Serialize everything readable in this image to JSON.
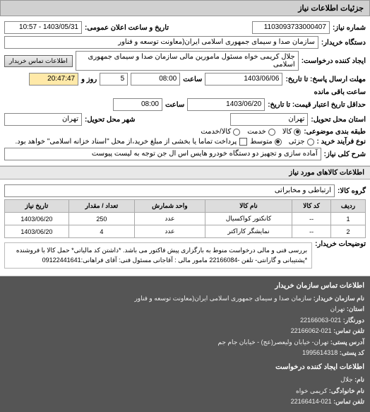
{
  "header": {
    "title": "جزئیات اطلاعات نیاز"
  },
  "top": {
    "need_no_label": "شماره نیاز:",
    "need_no": "1103093733000407",
    "announce_label": "تاریخ و ساعت اعلان عمومی:",
    "announce_value": "1403/05/31 - 10:57",
    "buyer_label": "دستگاه خریدار:",
    "buyer_value": "سازمان صدا و سیمای جمهوری اسلامی ایران(معاونت توسعه و فناور",
    "requester_label": "ایجاد کننده درخواست:",
    "requester_value": "جلال کریمی خواه مسئول مامورین مالی  سازمان صدا و سیمای جمهوری اسلامی",
    "contact_btn": "اطلاعات تماس خریدار",
    "reply_deadline_label": "مهلت ارسال پاسخ: تا تاریخ:",
    "reply_date": "1403/06/06",
    "reply_time_label": "ساعت",
    "reply_time": "08:00",
    "days_count": "5",
    "days_label": "روز و",
    "countdown": "20:47:47",
    "remaining_label": "ساعت باقی مانده",
    "validity_label": "حداقل تاریخ اعتبار قیمت: تا تاریخ:",
    "validity_date": "1403/06/20",
    "validity_time_label": "ساعت",
    "validity_time": "08:00",
    "deliver_province_label": "استان محل تحویل:",
    "deliver_province": "تهران",
    "deliver_city_label": "شهر محل تحویل:",
    "deliver_city": "تهران",
    "classify_label": "طبقه بندی موضوعی:",
    "radio_goods": "کالا",
    "radio_service": "خدمت",
    "radio_goods_service": "کالا/خدمت",
    "process_label": "نوع فرآیند خرید :",
    "radio_small": "جزئی",
    "radio_medium": "متوسط",
    "payment_note": "پرداخت تماما یا بخشی از مبلغ خرید،از محل \"اسناد خزانه اسلامی\" خواهد بود.",
    "desc_label": "شرح کلی نیاز:",
    "desc_value": "آماده سازی و تجهیز دو دستگاه خودرو هایس اس ال جن توجه به لیست پیوست"
  },
  "goods": {
    "title": "اطلاعات کالاهای مورد نیاز",
    "group_label": "گروه کالا:",
    "group_value": "ارتباطی و مخابراتی",
    "columns": [
      "ردیف",
      "کد کالا",
      "نام کالا",
      "واحد شمارش",
      "تعداد / مقدار",
      "تاریخ نیاز"
    ],
    "rows": [
      [
        "1",
        "--",
        "کانکتور کواکسیال",
        "عدد",
        "250",
        "1403/06/20"
      ],
      [
        "2",
        "--",
        "نمایشگر کاراکتر",
        "عدد",
        "4",
        "1403/06/20"
      ]
    ],
    "desc_label": "توضیحات خریدار:",
    "desc_text": "بررسی فنی و مالی درخواست منوط به بارگزاری پیش فاکتور می باشد. *داشتن کد مالیاتی* حمل کالا با فروشنده *پشتیبانی و گارانتی- تلفن -22166084 مامور مالی : آقاجانی مسئول فنی: آقای فراهانی:09122441641"
  },
  "buyer_contact": {
    "title": "اطلاعات تماس سازمان خریدار",
    "org_label": "نام سازمان خریدار:",
    "org": "سازمان صدا و سیمای جمهوری اسلامی ایران(معاونت توسعه و فناور",
    "province_label": "استان:",
    "province": "تهران",
    "phone_label": "دورنگار:",
    "phone": "021-22166063",
    "tel_label": "تلفن تماس:",
    "tel": "021-22166062",
    "addr_label": "آدرس پستی:",
    "addr": "تهران- خیابان ولیعصر(عج) - خیابان جام جم",
    "postal_label": "کد پستی:",
    "postal": "1995614318"
  },
  "requester_contact": {
    "title": "اطلاعات ایجاد کننده درخواست",
    "fname_label": "نام:",
    "fname": "جلال",
    "lname_label": "نام خانوادگی:",
    "lname": "کریمی خواه",
    "tel_label": "تلفن تماس:",
    "tel": "021-22166414"
  }
}
